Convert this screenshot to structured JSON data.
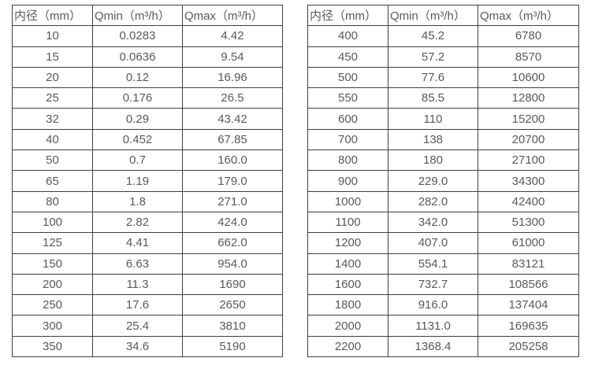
{
  "colors": {
    "background": "#ffffff",
    "border": "#3f3f3f",
    "text": "#58595b"
  },
  "chart_data": [
    {
      "type": "table",
      "title": "",
      "columns": [
        "内径（mm）",
        "Qmin（m³/h）",
        "Qmax（m³/h）"
      ],
      "rows": [
        [
          "10",
          "0.0283",
          "4.42"
        ],
        [
          "15",
          "0.0636",
          "9.54"
        ],
        [
          "20",
          "0.12",
          "16.96"
        ],
        [
          "25",
          "0.176",
          "26.5"
        ],
        [
          "32",
          "0.29",
          "43.42"
        ],
        [
          "40",
          "0.452",
          "67.85"
        ],
        [
          "50",
          "0.7",
          "160.0"
        ],
        [
          "65",
          "1.19",
          "179.0"
        ],
        [
          "80",
          "1.8",
          "271.0"
        ],
        [
          "100",
          "2.82",
          "424.0"
        ],
        [
          "125",
          "4.41",
          "662.0"
        ],
        [
          "150",
          "6.63",
          "954.0"
        ],
        [
          "200",
          "11.3",
          "1690"
        ],
        [
          "250",
          "17.6",
          "2650"
        ],
        [
          "300",
          "25.4",
          "3810"
        ],
        [
          "350",
          "34.6",
          "5190"
        ]
      ]
    },
    {
      "type": "table",
      "title": "",
      "columns": [
        "内径（mm）",
        "Qmin（m³/h）",
        "Qmax（m³/h）"
      ],
      "rows": [
        [
          "400",
          "45.2",
          "6780"
        ],
        [
          "450",
          "57.2",
          "8570"
        ],
        [
          "500",
          "77.6",
          "10600"
        ],
        [
          "550",
          "85.5",
          "12800"
        ],
        [
          "600",
          "110",
          "15200"
        ],
        [
          "700",
          "138",
          "20700"
        ],
        [
          "800",
          "180",
          "27100"
        ],
        [
          "900",
          "229.0",
          "34300"
        ],
        [
          "1000",
          "282.0",
          "42400"
        ],
        [
          "1100",
          "342.0",
          "51300"
        ],
        [
          "1200",
          "407.0",
          "61000"
        ],
        [
          "1400",
          "554.1",
          "83121"
        ],
        [
          "1600",
          "732.7",
          "108566"
        ],
        [
          "1800",
          "916.0",
          "137404"
        ],
        [
          "2000",
          "1131.0",
          "169635"
        ],
        [
          "2200",
          "1368.4",
          "205258"
        ]
      ]
    }
  ]
}
